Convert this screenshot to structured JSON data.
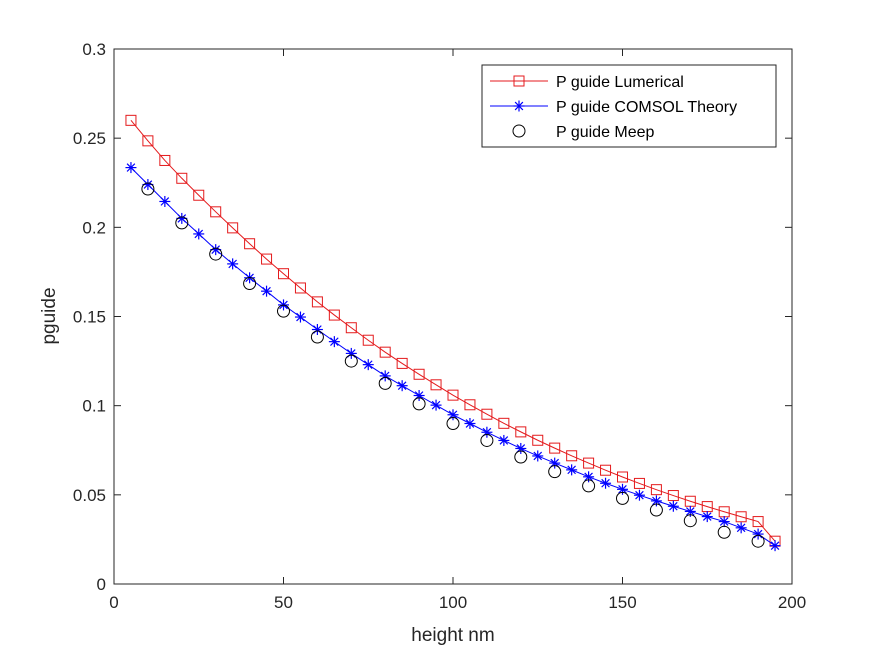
{
  "chart_data": {
    "type": "line",
    "title": "",
    "xlabel": "height nm",
    "ylabel": "pguide",
    "xlim": [
      0,
      200
    ],
    "ylim": [
      0,
      0.3
    ],
    "xticks": [
      0,
      50,
      100,
      150,
      200
    ],
    "yticks": [
      0,
      0.05,
      0.1,
      0.15,
      0.2,
      0.25,
      0.3
    ],
    "xtick_labels": [
      "0",
      "50",
      "100",
      "150",
      "200"
    ],
    "ytick_labels": [
      "0",
      "0.05",
      "0.1",
      "0.15",
      "0.2",
      "0.25",
      "0.3"
    ],
    "grid": false,
    "legend_position": "top-right",
    "series": [
      {
        "name": "P guide Lumerical",
        "color": "#e41a1c",
        "marker": "square",
        "line": true,
        "x": [
          5,
          10,
          15,
          20,
          25,
          30,
          35,
          40,
          45,
          50,
          55,
          60,
          65,
          70,
          75,
          80,
          85,
          90,
          95,
          100,
          105,
          110,
          115,
          120,
          125,
          130,
          135,
          140,
          145,
          150,
          155,
          160,
          165,
          170,
          175,
          180,
          185,
          190,
          195
        ],
        "y": [
          0.26,
          0.2485,
          0.2375,
          0.2275,
          0.218,
          0.2087,
          0.1997,
          0.1908,
          0.1822,
          0.174,
          0.166,
          0.1582,
          0.1508,
          0.1437,
          0.1367,
          0.13,
          0.1237,
          0.1176,
          0.1117,
          0.1059,
          0.1005,
          0.0952,
          0.0901,
          0.0853,
          0.0806,
          0.0762,
          0.0719,
          0.0678,
          0.0638,
          0.06,
          0.0564,
          0.0529,
          0.0496,
          0.0464,
          0.0434,
          0.0405,
          0.0377,
          0.035,
          0.024
        ]
      },
      {
        "name": "P guide COMSOL Theory",
        "color": "#0000ff",
        "marker": "asterisk",
        "line": true,
        "x": [
          5,
          10,
          15,
          20,
          25,
          30,
          35,
          40,
          45,
          50,
          55,
          60,
          65,
          70,
          75,
          80,
          85,
          90,
          95,
          100,
          105,
          110,
          115,
          120,
          125,
          130,
          135,
          140,
          145,
          150,
          155,
          160,
          165,
          170,
          175,
          180,
          185,
          190,
          195
        ],
        "y": [
          0.2335,
          0.224,
          0.2145,
          0.205,
          0.1963,
          0.1875,
          0.1795,
          0.1717,
          0.1642,
          0.1565,
          0.1497,
          0.1427,
          0.1359,
          0.1293,
          0.123,
          0.1167,
          0.1112,
          0.1057,
          0.1003,
          0.0949,
          0.09,
          0.0851,
          0.0805,
          0.076,
          0.0718,
          0.0678,
          0.064,
          0.0601,
          0.0565,
          0.0531,
          0.0498,
          0.0466,
          0.0436,
          0.0407,
          0.0378,
          0.035,
          0.0315,
          0.028,
          0.0215
        ]
      },
      {
        "name": "P guide Meep",
        "color": "#000000",
        "marker": "circle",
        "line": false,
        "x": [
          10,
          20,
          30,
          40,
          50,
          60,
          70,
          80,
          90,
          100,
          110,
          120,
          130,
          140,
          150,
          160,
          170,
          180,
          190
        ],
        "y": [
          0.2215,
          0.2025,
          0.185,
          0.1685,
          0.153,
          0.1385,
          0.125,
          0.1125,
          0.101,
          0.09,
          0.0805,
          0.0712,
          0.063,
          0.055,
          0.048,
          0.0415,
          0.0355,
          0.029,
          0.024
        ]
      }
    ]
  }
}
